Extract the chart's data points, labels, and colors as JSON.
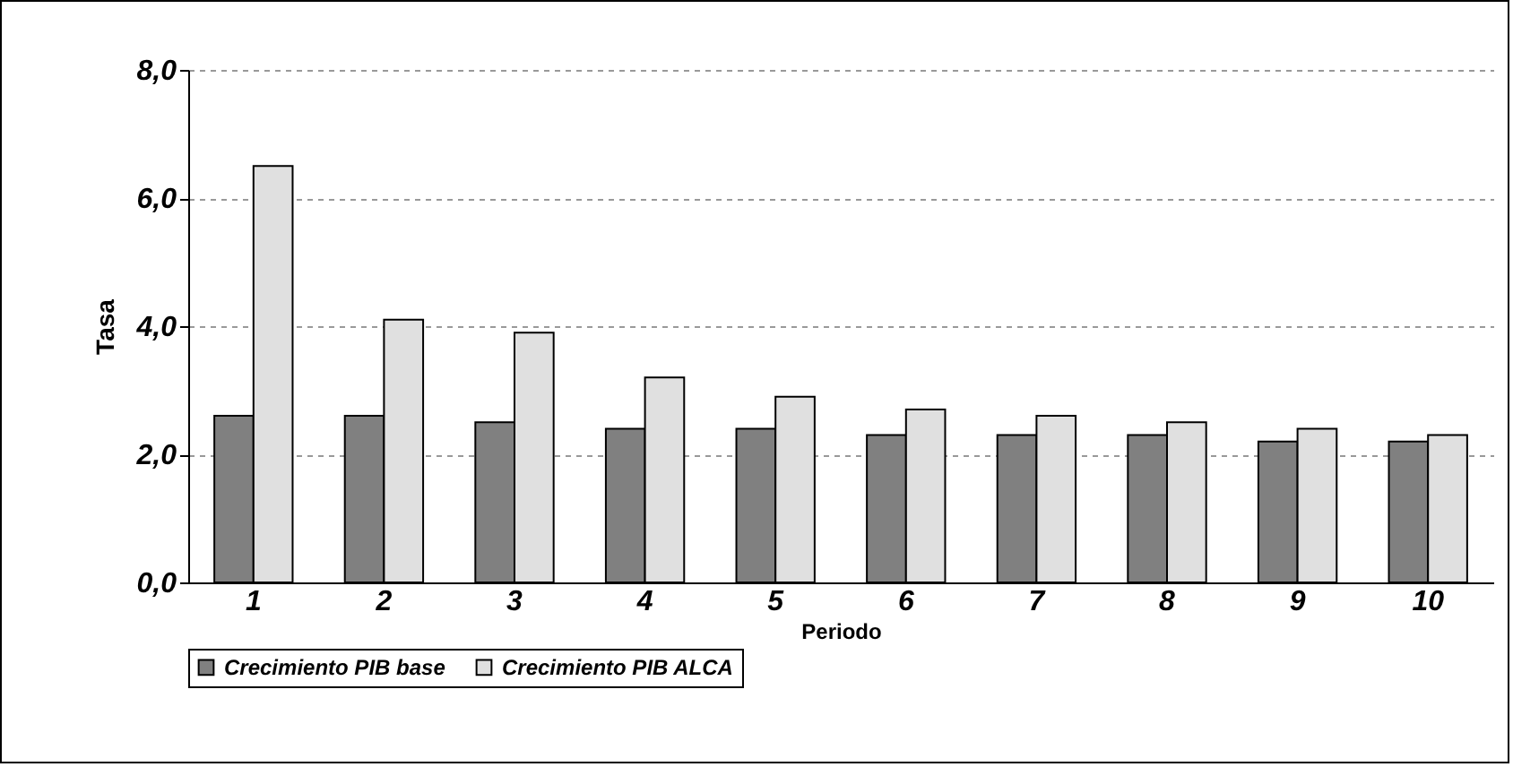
{
  "chart_data": {
    "type": "bar",
    "xlabel": "Periodo",
    "ylabel": "Tasa",
    "categories": [
      "1",
      "2",
      "3",
      "4",
      "5",
      "6",
      "7",
      "8",
      "9",
      "10"
    ],
    "series": [
      {
        "name": "Crecimiento PIB base",
        "color": "#808080",
        "values": [
          2.6,
          2.6,
          2.5,
          2.4,
          2.4,
          2.3,
          2.3,
          2.3,
          2.2,
          2.2
        ]
      },
      {
        "name": "Crecimiento PIB ALCA",
        "color": "#e0e0e0",
        "values": [
          6.5,
          4.1,
          3.9,
          3.2,
          2.9,
          2.7,
          2.6,
          2.5,
          2.4,
          2.3
        ]
      }
    ],
    "ylim": [
      0,
      8
    ],
    "yticks": [
      {
        "value": 0,
        "label": "0,0"
      },
      {
        "value": 2,
        "label": "2,0"
      },
      {
        "value": 4,
        "label": "4,0"
      },
      {
        "value": 6,
        "label": "6,0"
      },
      {
        "value": 8,
        "label": "8,0"
      }
    ],
    "grid": "y",
    "legend": "bottom"
  }
}
